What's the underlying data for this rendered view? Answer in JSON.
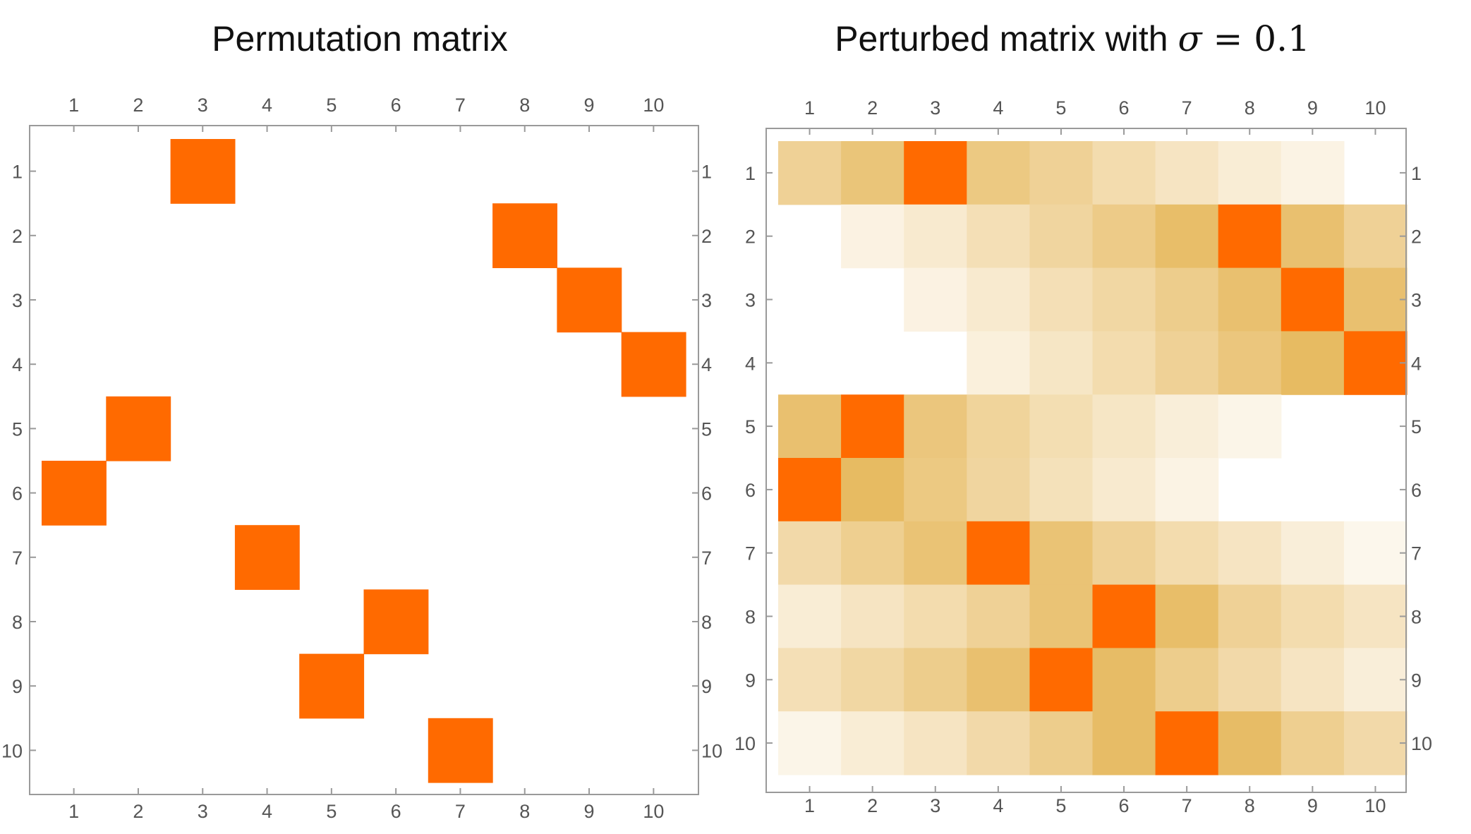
{
  "chart_data": [
    {
      "type": "heatmap",
      "title": "Permutation matrix",
      "rows": [
        "1",
        "2",
        "3",
        "4",
        "5",
        "6",
        "7",
        "8",
        "9",
        "10"
      ],
      "cols": [
        "1",
        "2",
        "3",
        "4",
        "5",
        "6",
        "7",
        "8",
        "9",
        "10"
      ],
      "color_low": "#ffffff",
      "color_mid": "#e6b85c",
      "color_high": "#ff6a00",
      "values": [
        [
          0,
          0,
          1,
          0,
          0,
          0,
          0,
          0,
          0,
          0
        ],
        [
          0,
          0,
          0,
          0,
          0,
          0,
          0,
          1,
          0,
          0
        ],
        [
          0,
          0,
          0,
          0,
          0,
          0,
          0,
          0,
          1,
          0
        ],
        [
          0,
          0,
          0,
          0,
          0,
          0,
          0,
          0,
          0,
          1
        ],
        [
          0,
          1,
          0,
          0,
          0,
          0,
          0,
          0,
          0,
          0
        ],
        [
          1,
          0,
          0,
          0,
          0,
          0,
          0,
          0,
          0,
          0
        ],
        [
          0,
          0,
          0,
          1,
          0,
          0,
          0,
          0,
          0,
          0
        ],
        [
          0,
          0,
          0,
          0,
          0,
          1,
          0,
          0,
          0,
          0
        ],
        [
          0,
          0,
          0,
          0,
          1,
          0,
          0,
          0,
          0,
          0
        ],
        [
          0,
          0,
          0,
          0,
          0,
          0,
          1,
          0,
          0,
          0
        ]
      ]
    },
    {
      "type": "heatmap",
      "title": "Perturbed matrix with ",
      "title_math": [
        "σ",
        " = 0.1"
      ],
      "rows": [
        "1",
        "2",
        "3",
        "4",
        "5",
        "6",
        "7",
        "8",
        "9",
        "10"
      ],
      "cols": [
        "1",
        "2",
        "3",
        "4",
        "5",
        "6",
        "7",
        "8",
        "9",
        "10"
      ],
      "color_low": "#ffffff",
      "color_mid": "#e6b85c",
      "color_high": "#ff6a00",
      "values": [
        [
          0.55,
          0.7,
          1.0,
          0.65,
          0.55,
          0.42,
          0.32,
          0.22,
          0.14,
          0.0
        ],
        [
          0.0,
          0.15,
          0.25,
          0.38,
          0.5,
          0.62,
          0.78,
          1.0,
          0.75,
          0.55
        ],
        [
          0.0,
          0.0,
          0.15,
          0.25,
          0.38,
          0.48,
          0.6,
          0.75,
          1.0,
          0.75
        ],
        [
          0.0,
          0.0,
          0.0,
          0.18,
          0.3,
          0.42,
          0.55,
          0.68,
          0.82,
          1.0
        ],
        [
          0.75,
          1.0,
          0.68,
          0.52,
          0.4,
          0.3,
          0.2,
          0.12,
          0.0,
          0.0
        ],
        [
          1.0,
          0.82,
          0.65,
          0.5,
          0.36,
          0.25,
          0.14,
          0.0,
          0.0,
          0.0
        ],
        [
          0.45,
          0.58,
          0.72,
          1.0,
          0.72,
          0.55,
          0.42,
          0.32,
          0.2,
          0.1
        ],
        [
          0.22,
          0.32,
          0.42,
          0.55,
          0.72,
          1.0,
          0.78,
          0.55,
          0.42,
          0.32
        ],
        [
          0.38,
          0.48,
          0.6,
          0.75,
          1.0,
          0.8,
          0.6,
          0.45,
          0.32,
          0.2
        ],
        [
          0.12,
          0.22,
          0.32,
          0.45,
          0.6,
          0.8,
          1.0,
          0.8,
          0.58,
          0.45
        ]
      ]
    }
  ]
}
